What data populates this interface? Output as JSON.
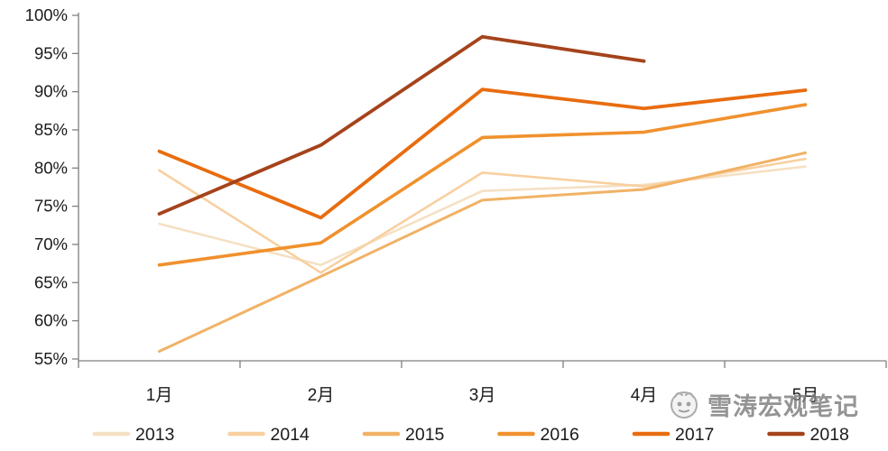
{
  "chart_data": {
    "type": "line",
    "title": "",
    "xlabel": "",
    "ylabel": "",
    "categories": [
      "1月",
      "2月",
      "3月",
      "4月",
      "5月"
    ],
    "series": [
      {
        "name": "2013",
        "color": "#f5e0c3",
        "values": [
          72.7,
          67.3,
          77.0,
          77.8,
          80.2
        ]
      },
      {
        "name": "2014",
        "color": "#f8d0a0",
        "values": [
          79.7,
          66.3,
          79.4,
          77.6,
          81.2
        ]
      },
      {
        "name": "2015",
        "color": "#f1b266",
        "values": [
          56.0,
          65.8,
          75.8,
          77.2,
          82.0
        ]
      },
      {
        "name": "2016",
        "color": "#f0912e",
        "values": [
          67.3,
          70.2,
          84.0,
          84.7,
          88.3
        ]
      },
      {
        "name": "2017",
        "color": "#e86c0f",
        "values": [
          82.2,
          73.5,
          90.3,
          87.8,
          90.2
        ]
      },
      {
        "name": "2018",
        "color": "#a5431b",
        "values": [
          74.0,
          83.0,
          97.2,
          94.0,
          null
        ]
      }
    ],
    "ylim": [
      55,
      100
    ],
    "yticks": [
      {
        "value": 100,
        "label": "100%"
      },
      {
        "value": 95,
        "label": "95%"
      },
      {
        "value": 90,
        "label": "90%"
      },
      {
        "value": 85,
        "label": "85%"
      },
      {
        "value": 80,
        "label": "80%"
      },
      {
        "value": 75,
        "label": "75%"
      },
      {
        "value": 70,
        "label": "70%"
      },
      {
        "value": 65,
        "label": "65%"
      },
      {
        "value": 60,
        "label": "60%"
      },
      {
        "value": 55,
        "label": "55%"
      }
    ],
    "grid": false,
    "legend_position": "bottom",
    "axis_color": "#808080",
    "text_color": "#1a1a1a"
  },
  "watermark": {
    "text": "雪涛宏观笔记"
  }
}
